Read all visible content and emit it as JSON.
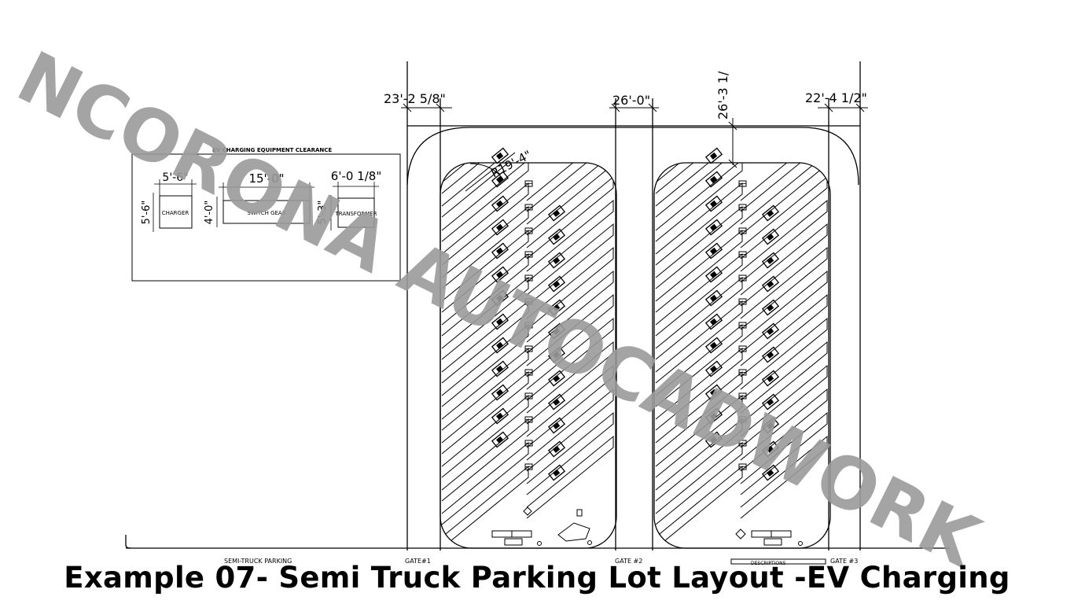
{
  "caption": "Example 07- Semi Truck Parking Lot Layout -EV Charging",
  "watermark": "NCORONA AUTOCADWORK",
  "dimensions": {
    "left_width": "23'-2  5/8\"",
    "middle_width": "26'-0\"",
    "top_gap": "26'-3  1/",
    "right_width": "22'-4  1/2\"",
    "radius": "R19'-4\""
  },
  "clearance_box": {
    "title": "EV CHARGING EQUIPMENT CLEARANCE",
    "charger": {
      "label": "CHARGER",
      "width": "5'-6\"",
      "height": "5'-6\""
    },
    "switch_gear": {
      "label": "SWITCH GEAR",
      "width": "15'-0\"",
      "height": "4'-0\""
    },
    "transformer": {
      "label": "TRANSFORMER",
      "width": "6'-0  1/8\"",
      "height": "5'-3\""
    }
  },
  "bottom_labels": {
    "parking": "SEMI-TRUCK PARKING",
    "gate1": "GATE#1",
    "gate2": "GATE #2",
    "gate3": "GATE #3",
    "descriptions": "DESCRIPTIONS"
  },
  "colors": {
    "line": "#000000",
    "watermark": "#9a9a9a",
    "background": "#ffffff"
  }
}
